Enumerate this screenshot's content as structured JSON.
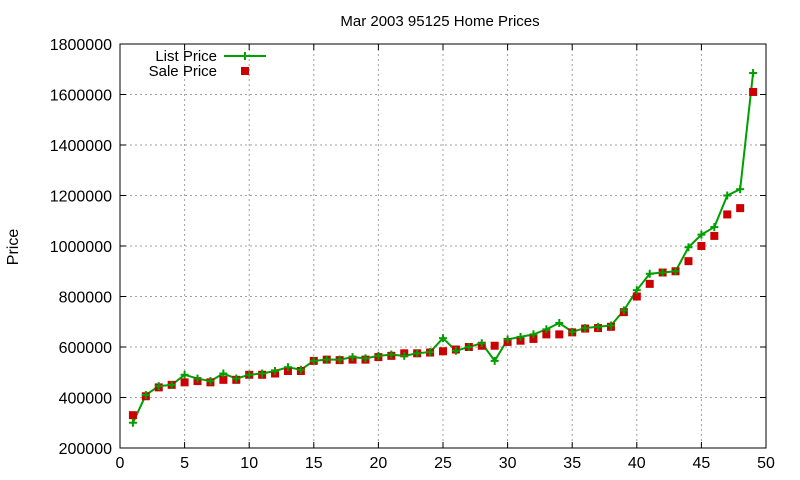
{
  "chart_data": {
    "type": "line",
    "title": "Mar 2003 95125 Home Prices",
    "xlabel": "",
    "ylabel": "Price",
    "xlim": [
      0,
      50
    ],
    "ylim": [
      200000,
      1800000
    ],
    "x_ticks": [
      0,
      5,
      10,
      15,
      20,
      25,
      30,
      35,
      40,
      45,
      50
    ],
    "y_ticks": [
      200000,
      400000,
      600000,
      800000,
      1000000,
      1200000,
      1400000,
      1600000,
      1800000
    ],
    "grid": true,
    "legend_position": "top-left",
    "x": [
      1,
      2,
      3,
      4,
      5,
      6,
      7,
      8,
      9,
      10,
      11,
      12,
      13,
      14,
      15,
      16,
      17,
      18,
      19,
      20,
      21,
      22,
      23,
      24,
      25,
      26,
      27,
      28,
      29,
      30,
      31,
      32,
      33,
      34,
      35,
      36,
      37,
      38,
      39,
      40,
      41,
      42,
      43,
      44,
      45,
      46,
      47,
      48,
      49
    ],
    "series": [
      {
        "name": "List Price",
        "style": "linespoints",
        "color": "#00a000",
        "values": [
          300000,
          410000,
          445000,
          450000,
          490000,
          475000,
          465000,
          495000,
          475000,
          490000,
          495000,
          505000,
          520000,
          510000,
          545000,
          550000,
          550000,
          560000,
          555000,
          565000,
          570000,
          565000,
          575000,
          580000,
          635000,
          585000,
          600000,
          615000,
          545000,
          630000,
          640000,
          650000,
          670000,
          695000,
          660000,
          675000,
          680000,
          685000,
          745000,
          825000,
          890000,
          895000,
          900000,
          995000,
          1045000,
          1075000,
          1200000,
          1225000,
          1685000
        ]
      },
      {
        "name": "Sale Price",
        "style": "points",
        "color": "#cc0000",
        "values": [
          330000,
          405000,
          440000,
          450000,
          460000,
          465000,
          460000,
          470000,
          470000,
          490000,
          490000,
          495000,
          505000,
          505000,
          545000,
          550000,
          548000,
          550000,
          550000,
          560000,
          565000,
          575000,
          575000,
          578000,
          583000,
          590000,
          600000,
          605000,
          605000,
          620000,
          625000,
          632000,
          650000,
          650000,
          658000,
          673000,
          675000,
          680000,
          738000,
          800000,
          850000,
          895000,
          900000,
          940000,
          1000000,
          1040000,
          1125000,
          1150000,
          1610000
        ]
      }
    ]
  }
}
